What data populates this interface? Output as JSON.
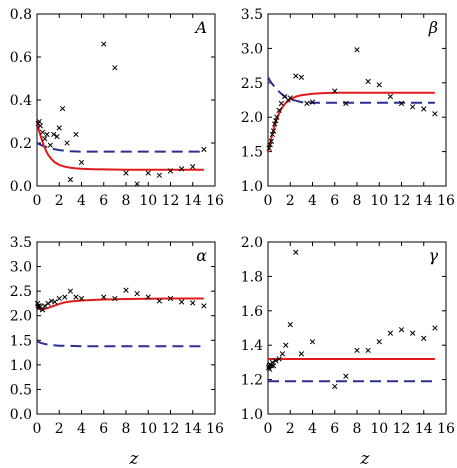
{
  "chart_data": [
    {
      "type": "scatter",
      "panel_label": "A",
      "xlabel": "",
      "xlim": [
        0,
        16
      ],
      "ylim": [
        0,
        0.8
      ],
      "xticks": [
        0,
        2,
        4,
        6,
        8,
        10,
        12,
        14,
        16
      ],
      "yticks": [
        "0.0",
        "0.2",
        "0.4",
        "0.6",
        "0.8"
      ],
      "scatter": {
        "x": [
          0.1,
          0.2,
          0.3,
          0.5,
          0.7,
          0.9,
          1.2,
          1.5,
          1.8,
          2.0,
          2.3,
          2.7,
          3.0,
          3.5,
          4.0,
          6.0,
          7.0,
          8.0,
          9.0,
          10.0,
          11.0,
          12.0,
          13.0,
          14.0,
          15.0
        ],
        "y": [
          0.29,
          0.3,
          0.28,
          0.25,
          0.22,
          0.24,
          0.19,
          0.24,
          0.23,
          0.27,
          0.36,
          0.2,
          0.03,
          0.24,
          0.11,
          0.66,
          0.55,
          0.06,
          0.01,
          0.06,
          0.05,
          0.07,
          0.08,
          0.09,
          0.17
        ]
      },
      "solid": {
        "x": [
          0,
          0.2,
          0.4,
          0.6,
          0.8,
          1.0,
          1.3,
          1.6,
          2.0,
          2.5,
          3.0,
          3.5,
          4.0,
          5.0,
          6.0,
          8.0,
          10.0,
          12.0,
          14.0,
          15.0
        ],
        "y": [
          0.3,
          0.255,
          0.22,
          0.19,
          0.165,
          0.145,
          0.125,
          0.11,
          0.098,
          0.09,
          0.085,
          0.082,
          0.08,
          0.078,
          0.077,
          0.076,
          0.076,
          0.076,
          0.076,
          0.076
        ]
      },
      "dashed": {
        "x": [
          0,
          0.3,
          0.6,
          1.0,
          1.5,
          2.0,
          2.5,
          3.0,
          4.0,
          6.0,
          8.0,
          10.0,
          12.0,
          14.0,
          15.0
        ],
        "y": [
          0.2,
          0.192,
          0.185,
          0.178,
          0.172,
          0.167,
          0.164,
          0.162,
          0.16,
          0.16,
          0.16,
          0.16,
          0.16,
          0.16,
          0.16
        ]
      }
    },
    {
      "type": "scatter",
      "panel_label": "β",
      "xlabel": "",
      "xlim": [
        0,
        16
      ],
      "ylim": [
        1.0,
        3.5
      ],
      "xticks": [
        0,
        2,
        4,
        6,
        8,
        10,
        12,
        14,
        16
      ],
      "yticks": [
        "1.0",
        "1.5",
        "2.0",
        "2.5",
        "3.0",
        "3.5"
      ],
      "scatter": {
        "x": [
          0.1,
          0.2,
          0.3,
          0.4,
          0.5,
          0.6,
          0.7,
          0.8,
          1.0,
          1.2,
          1.5,
          1.8,
          2.0,
          2.5,
          3.0,
          3.5,
          4.0,
          6.0,
          7.0,
          8.0,
          9.0,
          10.0,
          11.0,
          12.0,
          13.0,
          14.0,
          15.0
        ],
        "y": [
          1.55,
          1.6,
          1.65,
          1.75,
          1.8,
          1.9,
          1.95,
          2.0,
          2.1,
          2.2,
          2.3,
          2.25,
          2.28,
          2.6,
          2.58,
          2.2,
          2.22,
          2.38,
          2.2,
          2.98,
          2.52,
          2.47,
          2.3,
          2.2,
          2.15,
          2.12,
          2.05
        ]
      },
      "solid": {
        "x": [
          0,
          0.2,
          0.4,
          0.6,
          0.8,
          1.0,
          1.3,
          1.6,
          2.0,
          2.5,
          3.0,
          4.0,
          5.0,
          6.0,
          8.0,
          10.0,
          12.0,
          15.0
        ],
        "y": [
          1.5,
          1.63,
          1.76,
          1.88,
          1.98,
          2.06,
          2.15,
          2.21,
          2.26,
          2.3,
          2.32,
          2.34,
          2.35,
          2.355,
          2.355,
          2.355,
          2.355,
          2.355
        ]
      },
      "dashed": {
        "x": [
          0,
          0.3,
          0.6,
          1.0,
          1.5,
          2.0,
          2.5,
          3.0,
          4.0,
          6.0,
          8.0,
          10.0,
          12.0,
          15.0
        ],
        "y": [
          2.58,
          2.5,
          2.44,
          2.37,
          2.3,
          2.26,
          2.24,
          2.22,
          2.21,
          2.21,
          2.21,
          2.21,
          2.21,
          2.21
        ]
      }
    },
    {
      "type": "scatter",
      "panel_label": "α",
      "xlabel": "z",
      "xlim": [
        0,
        16
      ],
      "ylim": [
        0.0,
        3.5
      ],
      "xticks": [
        0,
        2,
        4,
        6,
        8,
        10,
        12,
        14,
        16
      ],
      "yticks": [
        "0.0",
        "0.5",
        "1.0",
        "1.5",
        "2.0",
        "2.5",
        "3.0",
        "3.5"
      ],
      "scatter": {
        "x": [
          0.05,
          0.1,
          0.15,
          0.2,
          0.3,
          0.5,
          0.7,
          1.0,
          1.3,
          1.6,
          2.0,
          2.5,
          3.0,
          3.5,
          4.0,
          6.0,
          7.0,
          8.0,
          9.0,
          10.0,
          11.0,
          12.0,
          13.0,
          14.0,
          15.0
        ],
        "y": [
          2.25,
          2.2,
          2.15,
          2.2,
          2.18,
          2.12,
          2.2,
          2.25,
          2.3,
          2.28,
          2.35,
          2.38,
          2.5,
          2.38,
          2.35,
          2.38,
          2.35,
          2.52,
          2.45,
          2.38,
          2.3,
          2.35,
          2.28,
          2.26,
          2.2
        ]
      },
      "solid": {
        "x": [
          0,
          0.2,
          0.4,
          0.6,
          1.0,
          1.5,
          2.0,
          2.5,
          3.0,
          4.0,
          5.0,
          6.0,
          8.0,
          10.0,
          12.0,
          15.0
        ],
        "y": [
          2.2,
          2.15,
          2.13,
          2.13,
          2.16,
          2.2,
          2.24,
          2.27,
          2.29,
          2.31,
          2.32,
          2.33,
          2.34,
          2.345,
          2.35,
          2.35
        ]
      },
      "dashed": {
        "x": [
          0,
          0.3,
          0.6,
          1.0,
          1.5,
          2.0,
          3.0,
          4.0,
          6.0,
          8.0,
          10.0,
          12.0,
          15.0
        ],
        "y": [
          1.48,
          1.45,
          1.43,
          1.41,
          1.4,
          1.39,
          1.385,
          1.38,
          1.38,
          1.38,
          1.38,
          1.38,
          1.38
        ]
      }
    },
    {
      "type": "scatter",
      "panel_label": "γ",
      "xlabel": "z",
      "xlim": [
        0,
        16
      ],
      "ylim": [
        1.0,
        2.0
      ],
      "xticks": [
        0,
        2,
        4,
        6,
        8,
        10,
        12,
        14,
        16
      ],
      "yticks": [
        "1.0",
        "1.2",
        "1.4",
        "1.6",
        "1.8",
        "2.0"
      ],
      "scatter": {
        "x": [
          0.05,
          0.1,
          0.15,
          0.2,
          0.3,
          0.4,
          0.5,
          0.7,
          1.0,
          1.3,
          1.6,
          2.0,
          2.5,
          3.0,
          4.0,
          6.0,
          7.0,
          8.0,
          9.0,
          10.0,
          11.0,
          12.0,
          13.0,
          14.0,
          15.0
        ],
        "y": [
          1.27,
          1.28,
          1.26,
          1.29,
          1.28,
          1.3,
          1.28,
          1.31,
          1.32,
          1.35,
          1.4,
          1.52,
          1.94,
          1.35,
          1.42,
          1.16,
          1.22,
          1.37,
          1.37,
          1.42,
          1.47,
          1.49,
          1.47,
          1.44,
          1.5
        ]
      },
      "solid": {
        "x": [
          0,
          0.5,
          1.0,
          2.0,
          4.0,
          8.0,
          12.0,
          15.0
        ],
        "y": [
          1.32,
          1.32,
          1.32,
          1.32,
          1.32,
          1.32,
          1.32,
          1.32
        ]
      },
      "dashed": {
        "x": [
          0,
          0.5,
          1.0,
          2.0,
          4.0,
          8.0,
          12.0,
          15.0
        ],
        "y": [
          1.19,
          1.19,
          1.19,
          1.19,
          1.19,
          1.19,
          1.19,
          1.19
        ]
      }
    }
  ],
  "colors": {
    "solid_line": "#e31a1c",
    "dashed_line": "#2b2f8f",
    "markers": "#000000",
    "axes": "#000000"
  }
}
